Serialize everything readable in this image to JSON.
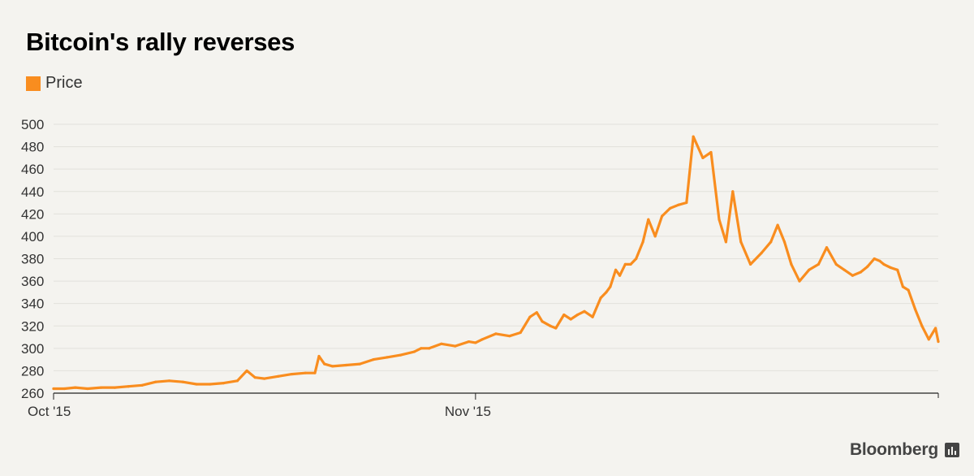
{
  "colors": {
    "series": "#f98d1f",
    "grid": "#e2e1dc",
    "axis": "#222222",
    "background": "#f4f3ef"
  },
  "brand": {
    "name": "Bloomberg",
    "icon": "bloomberg-chart-icon"
  },
  "chart_data": {
    "type": "line",
    "title": "Bitcoin's rally reverses",
    "xlabel": "",
    "ylabel": "",
    "ylim": [
      260,
      500
    ],
    "yticks": [
      260,
      280,
      300,
      320,
      340,
      360,
      380,
      400,
      420,
      440,
      460,
      480,
      500
    ],
    "xlim": [
      0,
      65
    ],
    "xticks": [
      {
        "value": 0,
        "label": "Oct '15"
      },
      {
        "value": 31,
        "label": "Nov '15"
      }
    ],
    "grid": true,
    "legend": "top-left",
    "series": [
      {
        "name": "Price",
        "x": [
          0,
          0.8,
          1.6,
          2.5,
          3.5,
          4.5,
          5.5,
          6.5,
          7.5,
          8.5,
          9.5,
          10.5,
          11.5,
          12.5,
          13.5,
          14.2,
          14.8,
          15.5,
          16.5,
          17.5,
          18.5,
          19.2,
          19.5,
          19.9,
          20.5,
          21.5,
          22.5,
          23.5,
          24.5,
          25.5,
          26.5,
          27,
          27.6,
          28.5,
          29.5,
          30.5,
          31,
          31.5,
          32.5,
          33.5,
          34.3,
          35,
          35.5,
          35.9,
          36.5,
          36.9,
          37.5,
          38,
          38.5,
          39,
          39.6,
          40.2,
          40.6,
          40.9,
          41.3,
          41.6,
          42,
          42.4,
          42.8,
          43.3,
          43.7,
          44.2,
          44.7,
          45.3,
          45.9,
          46.5,
          47,
          47.7,
          48.3,
          48.9,
          49.4,
          49.9,
          50.5,
          51.2,
          52,
          52.7,
          53.2,
          53.7,
          54.2,
          54.8,
          55.5,
          56.2,
          56.8,
          57.5,
          58.1,
          58.7,
          59.3,
          59.8,
          60.3,
          60.7,
          61,
          61.5,
          62,
          62.4,
          62.8,
          63.3,
          63.8,
          64.3,
          64.8,
          65
        ],
        "values": [
          264,
          264,
          265,
          264,
          265,
          265,
          266,
          267,
          270,
          271,
          270,
          268,
          268,
          269,
          271,
          280,
          274,
          273,
          275,
          277,
          278,
          278,
          293,
          286,
          284,
          285,
          286,
          290,
          292,
          294,
          297,
          300,
          300,
          304,
          302,
          306,
          305,
          308,
          313,
          311,
          314,
          328,
          332,
          324,
          320,
          318,
          330,
          326,
          330,
          333,
          328,
          345,
          350,
          355,
          370,
          365,
          375,
          375,
          380,
          395,
          415,
          400,
          418,
          425,
          428,
          430,
          489,
          470,
          475,
          415,
          395,
          440,
          395,
          375,
          385,
          395,
          410,
          395,
          375,
          360,
          370,
          375,
          390,
          375,
          370,
          365,
          368,
          373,
          380,
          378,
          375,
          372,
          370,
          355,
          352,
          335,
          320,
          308,
          318,
          306
        ]
      }
    ]
  }
}
